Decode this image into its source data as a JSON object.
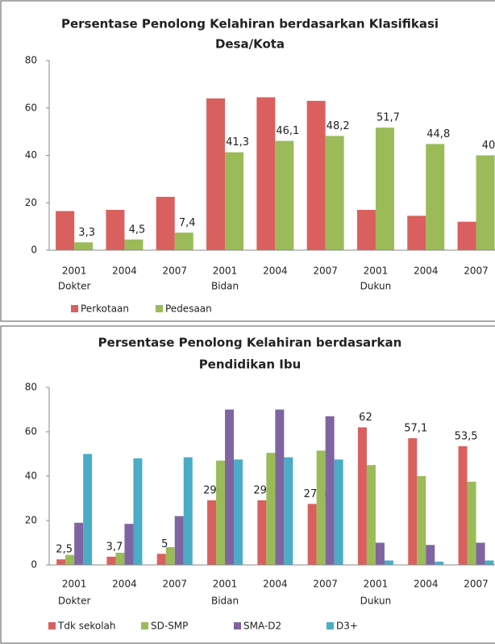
{
  "chart_data": [
    {
      "type": "bar",
      "title_lines": [
        "Persentase Penolong Kelahiran berdasarkan Klasifikasi",
        "Desa/Kota"
      ],
      "categories": [
        "2001",
        "2004",
        "2007",
        "2001",
        "2004",
        "2007",
        "2001",
        "2004",
        "2007"
      ],
      "group_labels": [
        "Dokter",
        null,
        null,
        "Bidan",
        null,
        null,
        "Dukun",
        null,
        null
      ],
      "series": [
        {
          "name": "Perkotaan",
          "color": "#d9605e",
          "values": [
            16.5,
            17,
            22.5,
            64,
            64.5,
            63,
            17,
            14.5,
            12
          ]
        },
        {
          "name": "Pedesaan",
          "color": "#9bbb59",
          "values": [
            3.3,
            4.5,
            7.4,
            41.3,
            46.1,
            48.2,
            51.7,
            44.8,
            40
          ],
          "value_labels": [
            "3,3",
            "4,5",
            "7,4",
            "41,3",
            "46,1",
            "48,2",
            "51,7",
            "44,8",
            "40"
          ]
        }
      ],
      "ylim": [
        0,
        80
      ],
      "yticks": [
        0,
        20,
        40,
        60,
        80
      ],
      "grid": false,
      "legend": "bottom"
    },
    {
      "type": "bar",
      "title_lines": [
        "Persentase Penolong Kelahiran berdasarkan",
        "Pendidikan Ibu"
      ],
      "categories": [
        "2001",
        "2004",
        "2007",
        "2001",
        "2004",
        "2007",
        "2001",
        "2004",
        "2007"
      ],
      "group_labels": [
        "Dokter",
        null,
        null,
        "Bidan",
        null,
        null,
        "Dukun",
        null,
        null
      ],
      "series": [
        {
          "name": "Tdk sekolah",
          "color": "#d9605e",
          "values": [
            2.5,
            3.7,
            5,
            29.1,
            29.1,
            27.5,
            62,
            57.1,
            53.5
          ],
          "value_labels": [
            "2,5",
            "3,7",
            "5",
            "29,1",
            "29,1",
            "27,5",
            "62",
            "57,1",
            "53,5"
          ]
        },
        {
          "name": "SD-SMP",
          "color": "#9bbb59",
          "values": [
            4.5,
            5.5,
            8,
            47,
            50.5,
            51.5,
            45,
            40,
            37.5
          ]
        },
        {
          "name": "SMA-D2",
          "color": "#8064a2",
          "values": [
            19,
            18.5,
            22,
            70,
            70,
            67,
            10,
            9,
            10
          ]
        },
        {
          "name": "D3+",
          "color": "#4bacc6",
          "values": [
            50,
            48,
            48.5,
            47.5,
            48.5,
            47.5,
            2,
            1.5,
            2
          ]
        }
      ],
      "ylim": [
        0,
        80
      ],
      "yticks": [
        0,
        20,
        40,
        60,
        80
      ],
      "grid": false,
      "legend": "bottom"
    }
  ]
}
